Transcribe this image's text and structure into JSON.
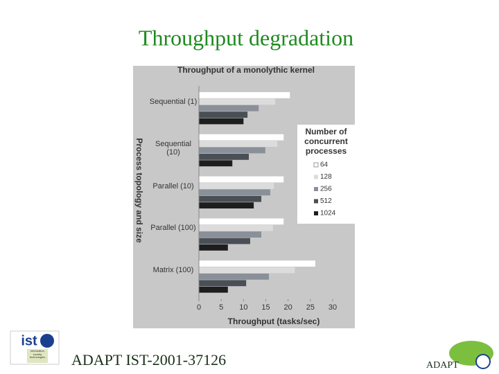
{
  "slide_title": "Throughput degradation",
  "footer": {
    "left": "ADAPT IST-2001-37126",
    "right": "ADAPT",
    "logo": "ist",
    "logo_caption": "information society technologies"
  },
  "chart_data": {
    "type": "barh",
    "title": "Throughput of a monolythic kernel",
    "x_label": "Throughput (tasks/sec)",
    "y_label": "Process topology and size",
    "legend_title": "Number of concurrent processes",
    "categories": [
      "Sequential (1)",
      "Sequential (10)",
      "Parallel (10)",
      "Parallel (100)",
      "Matrix (100)"
    ],
    "series": [
      {
        "name": "64",
        "color": "#ffffff",
        "values": [
          20.4,
          19.0,
          19.0,
          19.0,
          26.1
        ]
      },
      {
        "name": "128",
        "color": "#dcdcdc",
        "values": [
          17.1,
          17.6,
          16.8,
          16.6,
          21.5
        ]
      },
      {
        "name": "256",
        "color": "#8a9099",
        "values": [
          13.4,
          14.9,
          16.0,
          14.0,
          15.7
        ]
      },
      {
        "name": "512",
        "color": "#4a4f55",
        "values": [
          10.9,
          11.2,
          14.0,
          11.5,
          10.6
        ]
      },
      {
        "name": "1024",
        "color": "#1e1e1e",
        "values": [
          10.0,
          7.5,
          12.3,
          6.5,
          6.5
        ]
      }
    ],
    "xlim": [
      0,
      30
    ],
    "xticks": [
      0,
      5,
      10,
      15,
      20,
      25,
      30
    ],
    "grid": false
  }
}
